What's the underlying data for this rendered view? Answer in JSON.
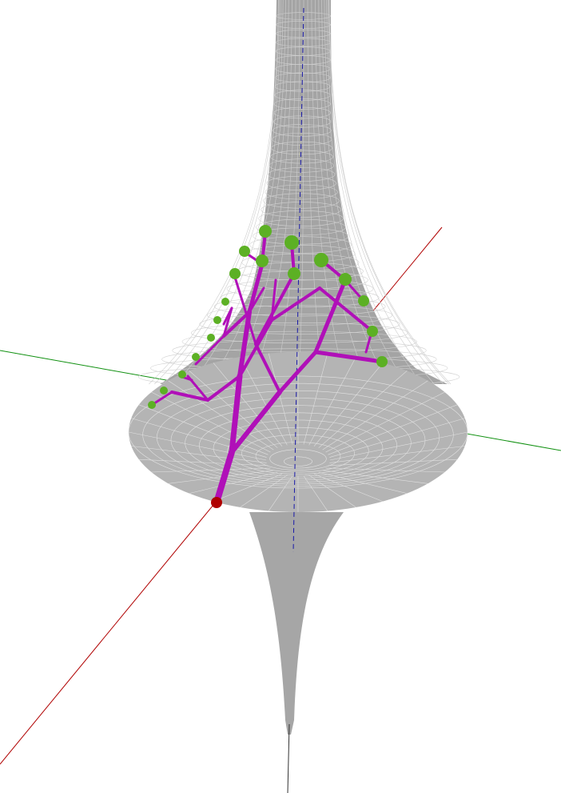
{
  "colors": {
    "background": "#ffffff",
    "surface_mesh": "#a0a0a0",
    "tree_branch": "#b010b8",
    "leaf_node": "#5cb024",
    "root_node": "#b00000",
    "axis_x": "#b00000",
    "axis_y": "#109010",
    "axis_z": "#1818a8"
  }
}
